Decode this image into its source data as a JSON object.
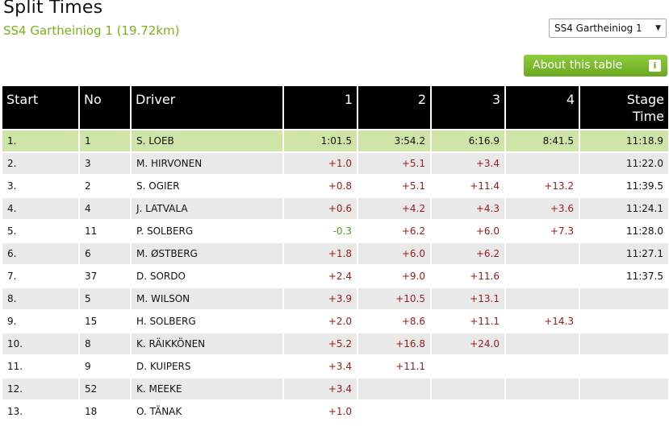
{
  "header": {
    "title": "Split Times",
    "subtitle": "SS4 Gartheiniog 1 (19.72km)"
  },
  "stage_select": {
    "selected": "SS4 Gartheiniog 1",
    "arrow_icon": "chevron-down-icon"
  },
  "about_button": {
    "label": "About this table",
    "icon": "info-icon",
    "icon_glyph": "i"
  },
  "colors": {
    "accent_green": "#7ab317",
    "leader_row": "#cfe5a8",
    "delta_positive": "#9b1b1b",
    "delta_negative": "#4f9a1b"
  },
  "table": {
    "columns": [
      "Start",
      "No",
      "Driver",
      "1",
      "2",
      "3",
      "4",
      "Stage Time"
    ],
    "rows": [
      {
        "start": "1.",
        "no": "1",
        "driver": "S. LOEB",
        "s1": "1:01.5",
        "s2": "3:54.2",
        "s3": "6:16.9",
        "s4": "8:41.5",
        "stage": "11:18.9"
      },
      {
        "start": "2.",
        "no": "3",
        "driver": "M. HIRVONEN",
        "s1": "+1.0",
        "s2": "+5.1",
        "s3": "+3.4",
        "s4": "",
        "stage": "11:22.0"
      },
      {
        "start": "3.",
        "no": "2",
        "driver": "S. OGIER",
        "s1": "+0.8",
        "s2": "+5.1",
        "s3": "+11.4",
        "s4": "+13.2",
        "stage": "11:39.5"
      },
      {
        "start": "4.",
        "no": "4",
        "driver": "J. LATVALA",
        "s1": "+0.6",
        "s2": "+4.2",
        "s3": "+4.3",
        "s4": "+3.6",
        "stage": "11:24.1"
      },
      {
        "start": "5.",
        "no": "11",
        "driver": "P. SOLBERG",
        "s1": "-0.3",
        "s2": "+6.2",
        "s3": "+6.0",
        "s4": "+7.3",
        "stage": "11:28.0"
      },
      {
        "start": "6.",
        "no": "6",
        "driver": "M. ØSTBERG",
        "s1": "+1.8",
        "s2": "+6.0",
        "s3": "+6.2",
        "s4": "",
        "stage": "11:27.1"
      },
      {
        "start": "7.",
        "no": "37",
        "driver": "D. SORDO",
        "s1": "+2.4",
        "s2": "+9.0",
        "s3": "+11.6",
        "s4": "",
        "stage": "11:37.5"
      },
      {
        "start": "8.",
        "no": "5",
        "driver": "M. WILSON",
        "s1": "+3.9",
        "s2": "+10.5",
        "s3": "+13.1",
        "s4": "",
        "stage": ""
      },
      {
        "start": "9.",
        "no": "15",
        "driver": "H. SOLBERG",
        "s1": "+2.0",
        "s2": "+8.6",
        "s3": "+11.1",
        "s4": "+14.3",
        "stage": ""
      },
      {
        "start": "10.",
        "no": "8",
        "driver": "K. RÄIKKÖNEN",
        "s1": "+5.2",
        "s2": "+16.8",
        "s3": "+24.0",
        "s4": "",
        "stage": ""
      },
      {
        "start": "11.",
        "no": "9",
        "driver": "D. KUIPERS",
        "s1": "+3.4",
        "s2": "+11.1",
        "s3": "",
        "s4": "",
        "stage": ""
      },
      {
        "start": "12.",
        "no": "52",
        "driver": "K. MEEKE",
        "s1": "+3.4",
        "s2": "",
        "s3": "",
        "s4": "",
        "stage": ""
      },
      {
        "start": "13.",
        "no": "18",
        "driver": "O. TÄNAK",
        "s1": "+1.0",
        "s2": "",
        "s3": "",
        "s4": "",
        "stage": ""
      }
    ]
  }
}
